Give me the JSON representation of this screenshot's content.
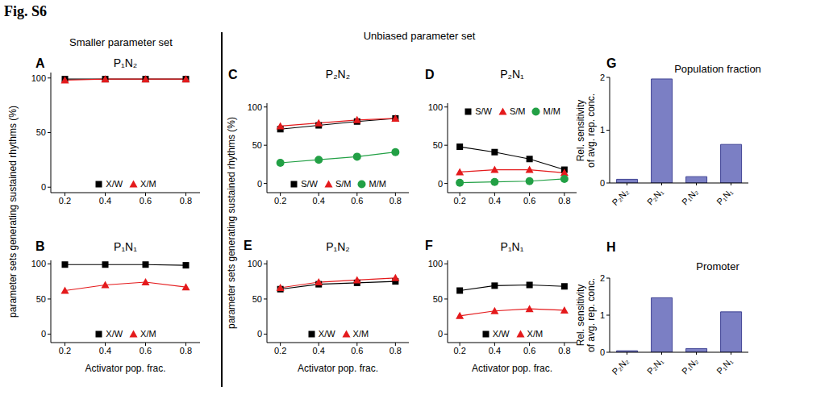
{
  "title": "Fig. S6",
  "section_labels": [
    "Smaller parameter set",
    "Unbiased parameter set"
  ],
  "chart_data": [
    {
      "panel": "A",
      "type": "line",
      "title": "P₁N₂",
      "y_label": "parameter sets generating sustained rhythms (%)",
      "x": [
        0.2,
        0.4,
        0.6,
        0.8
      ],
      "xlim": [
        0.13,
        0.87
      ],
      "xticks": [
        0.2,
        0.4,
        0.6,
        0.8
      ],
      "ylim": [
        -5,
        105
      ],
      "yticks": [
        0,
        50,
        100
      ],
      "legend": "lower center",
      "series": [
        {
          "name": "X/W",
          "color": "#000000",
          "marker": "square",
          "values": [
            99,
            99,
            99,
            99
          ]
        },
        {
          "name": "X/M",
          "color": "#e41a1c",
          "marker": "triangle",
          "values": [
            98,
            99,
            99,
            99
          ]
        }
      ]
    },
    {
      "panel": "B",
      "type": "line",
      "title": "P₁N₁",
      "x_label": "Activator pop. frac.",
      "x": [
        0.2,
        0.4,
        0.6,
        0.8
      ],
      "xlim": [
        0.13,
        0.87
      ],
      "xticks": [
        0.2,
        0.4,
        0.6,
        0.8
      ],
      "ylim": [
        -12,
        105
      ],
      "yticks": [
        0,
        50,
        100
      ],
      "legend": "lower center",
      "series": [
        {
          "name": "X/W",
          "color": "#000000",
          "marker": "square",
          "values": [
            99,
            99,
            99,
            98
          ]
        },
        {
          "name": "X/M",
          "color": "#e41a1c",
          "marker": "triangle",
          "values": [
            62,
            70,
            74,
            67
          ]
        }
      ]
    },
    {
      "panel": "C",
      "type": "line",
      "title": "P₂N₂",
      "y_label": "parameter sets generating sustained rhythms (%)",
      "x": [
        0.2,
        0.4,
        0.6,
        0.8
      ],
      "xlim": [
        0.13,
        0.87
      ],
      "xticks": [
        0.2,
        0.4,
        0.6,
        0.8
      ],
      "ylim": [
        -12,
        105
      ],
      "yticks": [
        0,
        50,
        100
      ],
      "legend": "lower center",
      "series": [
        {
          "name": "S/W",
          "color": "#000000",
          "marker": "square",
          "values": [
            71,
            76,
            81,
            85
          ]
        },
        {
          "name": "S/M",
          "color": "#e41a1c",
          "marker": "triangle",
          "values": [
            75,
            79,
            83,
            85
          ]
        },
        {
          "name": "M/M",
          "color": "#22a045",
          "marker": "circle",
          "values": [
            27,
            31,
            35,
            41
          ]
        }
      ]
    },
    {
      "panel": "D",
      "type": "line",
      "title": "P₂N₁",
      "x": [
        0.2,
        0.4,
        0.6,
        0.8
      ],
      "xlim": [
        0.13,
        0.87
      ],
      "xticks": [
        0.2,
        0.4,
        0.6,
        0.8
      ],
      "ylim": [
        -12,
        105
      ],
      "yticks": [
        0,
        50,
        100
      ],
      "legend": "upper center",
      "series": [
        {
          "name": "S/W",
          "color": "#000000",
          "marker": "square",
          "values": [
            48,
            41,
            32,
            18
          ]
        },
        {
          "name": "S/M",
          "color": "#e41a1c",
          "marker": "triangle",
          "values": [
            15,
            18,
            18,
            14
          ]
        },
        {
          "name": "M/M",
          "color": "#22a045",
          "marker": "circle",
          "values": [
            1,
            2,
            3,
            6
          ]
        }
      ]
    },
    {
      "panel": "E",
      "type": "line",
      "title": "P₁N₂",
      "x_label": "Activator pop. frac.",
      "x": [
        0.2,
        0.4,
        0.6,
        0.8
      ],
      "xlim": [
        0.13,
        0.87
      ],
      "xticks": [
        0.2,
        0.4,
        0.6,
        0.8
      ],
      "ylim": [
        -12,
        105
      ],
      "yticks": [
        0,
        50,
        100
      ],
      "legend": "lower center",
      "series": [
        {
          "name": "X/W",
          "color": "#000000",
          "marker": "square",
          "values": [
            64,
            71,
            73,
            75
          ]
        },
        {
          "name": "X/M",
          "color": "#e41a1c",
          "marker": "triangle",
          "values": [
            66,
            74,
            77,
            80
          ]
        }
      ]
    },
    {
      "panel": "F",
      "type": "line",
      "title": "P₁N₁",
      "x_label": "Activator pop. frac.",
      "x": [
        0.2,
        0.4,
        0.6,
        0.8
      ],
      "xlim": [
        0.13,
        0.87
      ],
      "xticks": [
        0.2,
        0.4,
        0.6,
        0.8
      ],
      "ylim": [
        -12,
        105
      ],
      "yticks": [
        0,
        50,
        100
      ],
      "legend": "lower center",
      "series": [
        {
          "name": "X/W",
          "color": "#000000",
          "marker": "square",
          "values": [
            62,
            69,
            70,
            68
          ]
        },
        {
          "name": "X/M",
          "color": "#e41a1c",
          "marker": "triangle",
          "values": [
            26,
            33,
            36,
            34
          ]
        }
      ]
    },
    {
      "panel": "G",
      "type": "bar",
      "title": "Population fraction",
      "y_label": [
        "Rel. sensitivity",
        "of avg. rep. conc."
      ],
      "categories": [
        "P₂N₂",
        "P₂N₁",
        "P₁N₂",
        "P₁N₁"
      ],
      "values": [
        0.07,
        1.97,
        0.12,
        0.73
      ],
      "color": "#7b7fc4",
      "ylim": [
        0,
        2
      ],
      "yticks": [
        0,
        1,
        2
      ]
    },
    {
      "panel": "H",
      "type": "bar",
      "title": "Promoter",
      "y_label": [
        "Rel. sensitivity",
        "of avg. rep. conc."
      ],
      "categories": [
        "P₂N₂",
        "P₂N₁",
        "P₁N₂",
        "P₁N₁"
      ],
      "values": [
        0.04,
        1.47,
        0.1,
        1.09
      ],
      "color": "#7b7fc4",
      "ylim": [
        0,
        2
      ],
      "yticks": [
        0,
        1,
        2
      ]
    }
  ]
}
